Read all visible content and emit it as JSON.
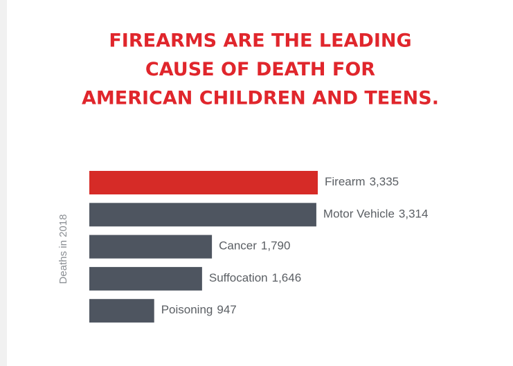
{
  "chart_data": {
    "type": "bar",
    "orientation": "horizontal",
    "title": [
      "FIREARMS ARE THE LEADING",
      "CAUSE OF DEATH FOR",
      "AMERICAN CHILDREN AND TEENS."
    ],
    "y_label": "Deaths in 2018",
    "categories": [
      "Firearm",
      "Motor Vehicle",
      "Cancer",
      "Suffocation",
      "Poisoning"
    ],
    "values": [
      3335,
      3314,
      1790,
      1646,
      947
    ],
    "value_labels": [
      "3,335",
      "3,314",
      "1,790",
      "1,646",
      "947"
    ],
    "colors": [
      "#d62b27",
      "#4e5560",
      "#4e5560",
      "#4e5560",
      "#4e5560"
    ],
    "title_color": "#e0262c"
  }
}
